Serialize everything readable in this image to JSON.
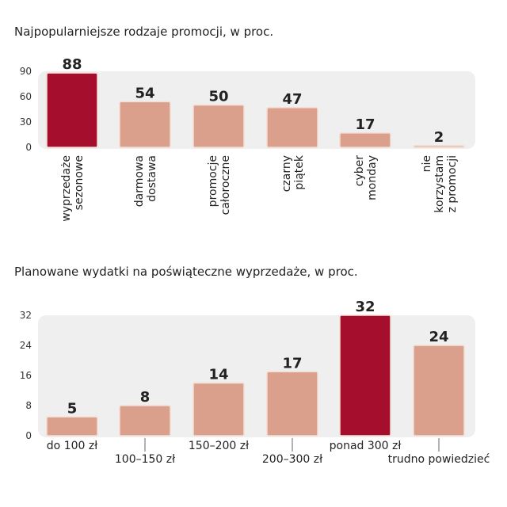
{
  "chart_data": [
    {
      "type": "bar",
      "title": "Najpopularniejsze rodzaje promocji, w proc.",
      "categories": [
        [
          "wyprzedaże",
          "sezonowe"
        ],
        [
          "darmowa",
          "dostawa"
        ],
        [
          "promocje",
          "całoroczne"
        ],
        [
          "czarny",
          "piątek"
        ],
        [
          "cyber",
          "monday"
        ],
        [
          "nie",
          "korzystam",
          "z promocji"
        ]
      ],
      "values": [
        88,
        54,
        50,
        47,
        17,
        2
      ],
      "colors": [
        "#a50f2d",
        "#dba08c",
        "#dba08c",
        "#dba08c",
        "#dba08c",
        "#dba08c"
      ],
      "ylim": [
        0,
        90
      ],
      "yticks": [
        0,
        30,
        60,
        90
      ],
      "label_style": "rotated"
    },
    {
      "type": "bar",
      "title": "Planowane wydatki na poświąteczne wyprzedaże, w proc.",
      "categories": [
        [
          "do 100 zł"
        ],
        [
          "100–150 zł"
        ],
        [
          "150–200 zł"
        ],
        [
          "200–300 zł"
        ],
        [
          "ponad 300 zł"
        ],
        [
          "trudno powiedzieć"
        ]
      ],
      "values": [
        5,
        8,
        14,
        17,
        32,
        24
      ],
      "colors": [
        "#dba08c",
        "#dba08c",
        "#dba08c",
        "#dba08c",
        "#a50f2d",
        "#dba08c"
      ],
      "ylim": [
        0,
        32
      ],
      "yticks": [
        0,
        8,
        16,
        24,
        32
      ],
      "label_style": "staggered"
    }
  ]
}
